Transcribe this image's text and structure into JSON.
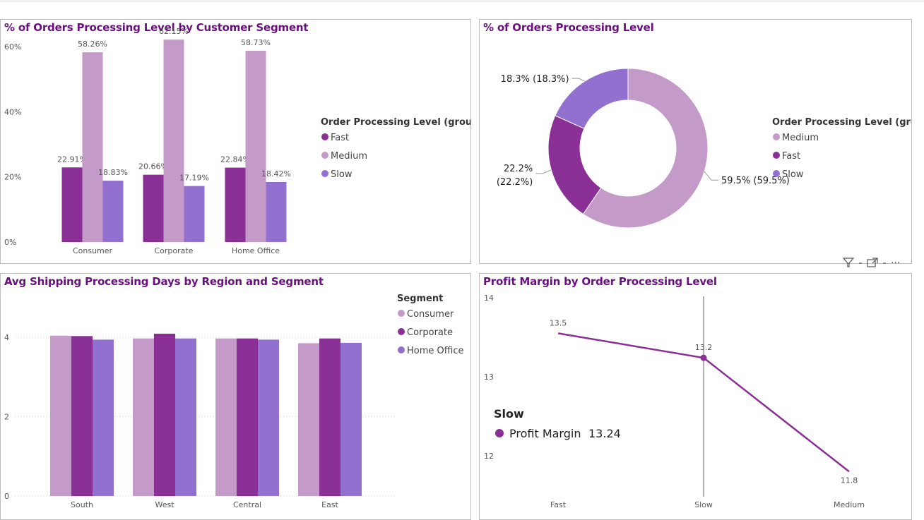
{
  "header_icons": {
    "filter_icon": "filter-icon",
    "focus_icon": "focus-mode-icon",
    "more_icon": "more-options-icon",
    "separator": "-",
    "more_glyph": "···"
  },
  "colors": {
    "fast": "#8a2f95",
    "medium": "#c49ac9",
    "slow": "#9270d0",
    "consumer": "#c49ac9",
    "corporate": "#8a2f95",
    "home_office": "#9270d0",
    "line": "#8a2f95",
    "title": "#6a0f7e"
  },
  "chart1": {
    "title": "% of Orders Processing Level by Customer Segment",
    "legend_title": "Order Processing Level (groups)",
    "chart_data": {
      "type": "bar",
      "categories": [
        "Consumer",
        "Corporate",
        "Home Office"
      ],
      "series": [
        {
          "name": "Fast",
          "values": [
            22.91,
            20.66,
            22.84
          ],
          "labels": [
            "22.91%",
            "20.66%",
            "22.84%"
          ]
        },
        {
          "name": "Medium",
          "values": [
            58.26,
            62.15,
            58.73
          ],
          "labels": [
            "58.26%",
            "62.15%",
            "58.73%"
          ]
        },
        {
          "name": "Slow",
          "values": [
            18.83,
            17.19,
            18.42
          ],
          "labels": [
            "18.83%",
            "17.19%",
            "18.42%"
          ]
        }
      ],
      "y_ticks": [
        "0%",
        "20%",
        "40%",
        "60%"
      ],
      "ylim": [
        0,
        65
      ],
      "legend": "right"
    }
  },
  "chart2": {
    "title": "% of Orders Processing Level",
    "legend_title": "Order Processing Level (gro...",
    "chart_data": {
      "type": "pie",
      "donut": true,
      "slices": [
        {
          "name": "Medium",
          "value": 59.5,
          "label": "59.5% (59.5%)"
        },
        {
          "name": "Fast",
          "value": 22.2,
          "label_line1": "22.2%",
          "label_line2": "(22.2%)"
        },
        {
          "name": "Slow",
          "value": 18.3,
          "label": "18.3% (18.3%)"
        }
      ],
      "legend": "right"
    }
  },
  "chart3": {
    "title": "Avg Shipping Processing Days by Region and Segment",
    "legend_title": "Segment",
    "chart_data": {
      "type": "bar",
      "categories": [
        "South",
        "West",
        "Central",
        "East"
      ],
      "series": [
        {
          "name": "Consumer",
          "values": [
            4.04,
            3.97,
            3.97,
            3.85
          ]
        },
        {
          "name": "Corporate",
          "values": [
            4.03,
            4.09,
            3.97,
            3.97
          ]
        },
        {
          "name": "Home Office",
          "values": [
            3.94,
            3.97,
            3.94,
            3.86
          ]
        }
      ],
      "y_ticks": [
        "0",
        "2",
        "4"
      ],
      "ylim": [
        0,
        4.4
      ],
      "legend": "top-right"
    }
  },
  "chart4": {
    "title": "Profit Margin by Order Processing Level",
    "chart_data": {
      "type": "line",
      "categories": [
        "Fast",
        "Slow",
        "Medium"
      ],
      "values": [
        13.55,
        13.24,
        11.8
      ],
      "labels": [
        "13.5",
        "13.2",
        "11.8"
      ],
      "y_ticks": [
        "14",
        "13",
        "12"
      ],
      "ylim": [
        11.7,
        14.05
      ]
    },
    "tooltip": {
      "title": "Slow",
      "measure": "Profit Margin",
      "value": "13.24"
    }
  }
}
